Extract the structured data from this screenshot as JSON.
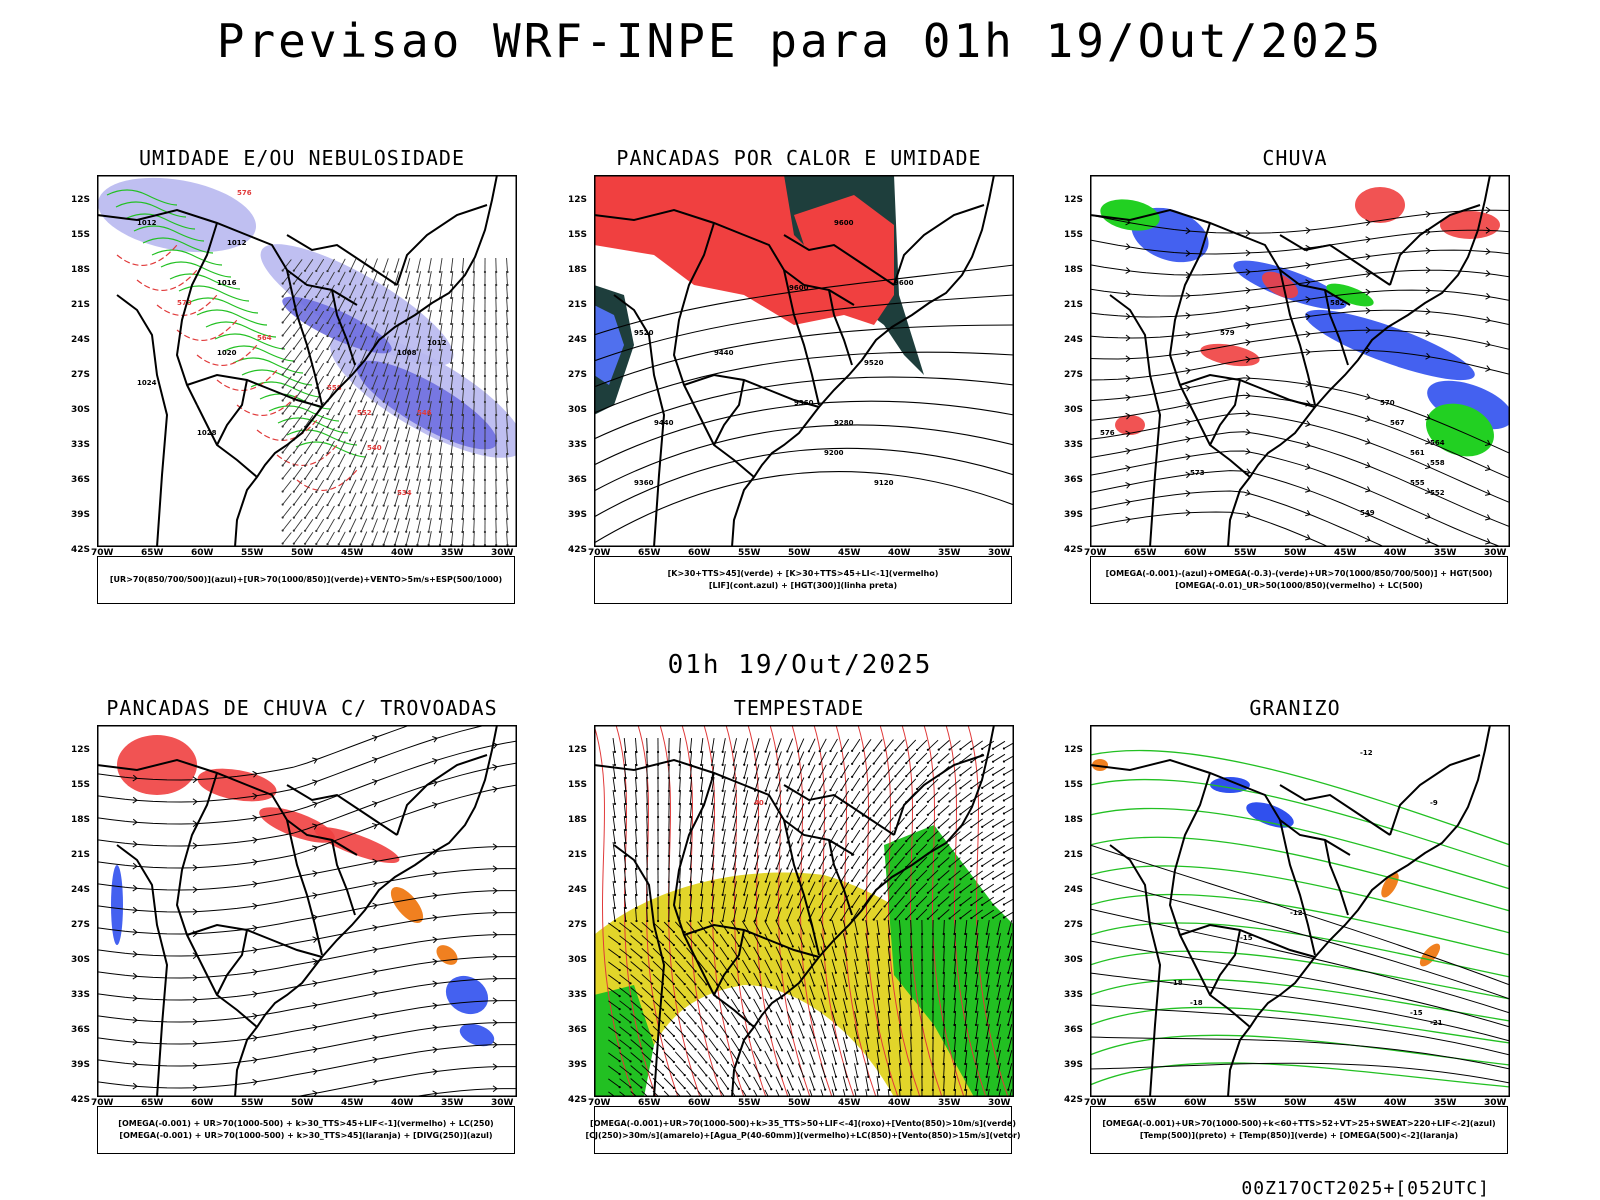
{
  "main_title": "Previsao WRF-INPE  para 01h 19/Out/2025",
  "mid_title": "01h 19/Out/2025",
  "footer": "00Z17OCT2025+[052UTC]",
  "lat_labels": [
    "12S",
    "15S",
    "18S",
    "21S",
    "24S",
    "27S",
    "30S",
    "33S",
    "36S",
    "39S",
    "42S"
  ],
  "lon_labels": [
    "70W",
    "65W",
    "60W",
    "55W",
    "50W",
    "45W",
    "40W",
    "35W",
    "30W"
  ],
  "panels": [
    {
      "title": "UMIDADE E/OU NEBULOSIDADE",
      "legend": [
        "[UR>70(850/700/500)](azul)+[UR>70(1000/850)](verde)+VENTO>5m/s+ESP(500/1000)"
      ],
      "contour_labels": [
        "1012",
        "1012",
        "1016",
        "1020",
        "1024",
        "1028",
        "1008",
        "1012",
        "576",
        "570",
        "564",
        "558",
        "552",
        "546",
        "540",
        "534"
      ]
    },
    {
      "title": "PANCADAS POR CALOR E UMIDADE",
      "legend": [
        "[K>30+TTS>45](verde) + [K>30+TTS>45+LI<-1](vermelho)",
        "[LIF](cont.azul) + [HGT(300)](linha preta)"
      ],
      "contour_labels": [
        "9600",
        "9600",
        "9520",
        "9440",
        "9360",
        "9280",
        "9200",
        "9120",
        "9520",
        "9440",
        "9360",
        "9600"
      ]
    },
    {
      "title": "CHUVA",
      "legend": [
        "[OMEGA(-0.001)-(azul)+OMEGA(-0.3)-(verde)+UR>70(1000/850/700/500)] + HGT(500)",
        "[OMEGA(-0.01)_UR>50(1000/850)(vermelho) + LC(500)"
      ],
      "contour_labels": [
        "582",
        "579",
        "576",
        "573",
        "570",
        "567",
        "564",
        "561",
        "558",
        "555",
        "552",
        "549"
      ]
    },
    {
      "title": "PANCADAS DE CHUVA C/ TROVOADAS",
      "legend": [
        "[OMEGA(-0.001) + UR>70(1000-500) + k>30_TTS>45+LIF<-1](vermelho) + LC(250)",
        "[OMEGA(-0.001) + UR>70(1000-500) + k>30_TTS>45](laranja) + [DIVG(250)](azul)"
      ],
      "contour_labels": []
    },
    {
      "title": "TEMPESTADE",
      "legend": [
        "[OMEGA(-0.001)+UR>70(1000-500)+k>35_TTS>50+LIF<-4](roxo)+[Vento(850)>10m/s](verde)",
        "[CJ(250)>30m/s](amarelo)+[Agua_P(40-60mm)](vermelho)+LC(850)+[Vento(850)>15m/s](vetor)"
      ],
      "contour_labels": [
        "40"
      ]
    },
    {
      "title": "GRANIZO",
      "legend": [
        "[OMEGA(-0.001)+UR>70(1000-500)+k<60+TTS>52+VT>25+SWEAT>220+LIF<-2](azul)",
        "[Temp(500)](preto) + [Temp(850)](verde) + [OMEGA(500)<-2](laranja)"
      ],
      "contour_labels": [
        "-12",
        "-15",
        "-18",
        "-15",
        "-18",
        "-21",
        "-12",
        "-9"
      ]
    }
  ]
}
